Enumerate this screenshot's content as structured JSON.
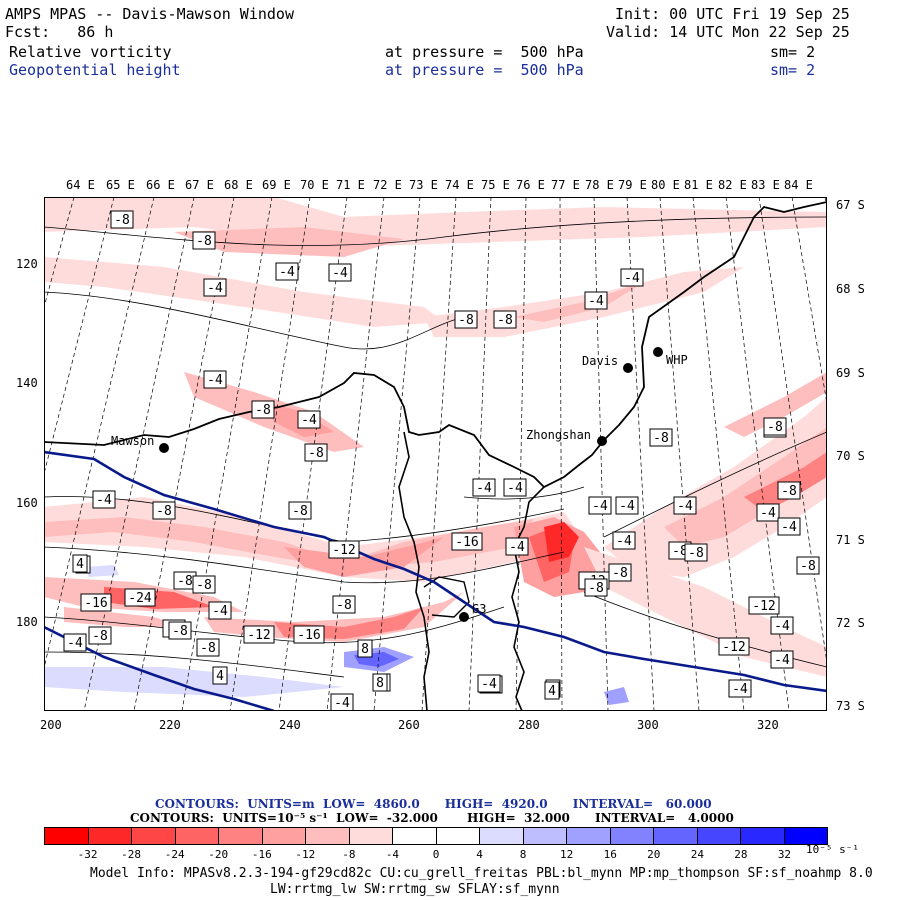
{
  "header": {
    "title": "AMPS MPAS -- Davis-Mawson Window",
    "fcst": "Fcst:   86 h",
    "init": "Init: 00 UTC Fri 19 Sep 25",
    "valid": "Valid: 14 UTC Mon 22 Sep 25",
    "field1": "Relative vorticity",
    "field1_level": "at pressure =  500 hPa",
    "field1_sm": "sm= 2",
    "field2": "Geopotential height",
    "field2_level": "at pressure =  500 hPa",
    "field2_sm": "sm= 2"
  },
  "axes": {
    "top": [
      "64 E",
      "65 E",
      "66 E",
      "67 E",
      "68 E",
      "69 E",
      "70 E",
      "71 E",
      "72 E",
      "73 E",
      "74 E",
      "75 E",
      "76 E",
      "77 E",
      "78 E",
      "79 E",
      "80 E",
      "81 E",
      "82 E",
      "83 E",
      "84 E"
    ],
    "right": [
      "67 S",
      "68 S",
      "69 S",
      "70 S",
      "71 S",
      "72 S",
      "73 S"
    ],
    "left": [
      "120",
      "140",
      "160",
      "180"
    ],
    "bottom": [
      "200",
      "220",
      "240",
      "260",
      "280",
      "300",
      "320"
    ]
  },
  "stations": [
    {
      "name": "Mawson"
    },
    {
      "name": "Davis"
    },
    {
      "name": "WHP"
    },
    {
      "name": "Zhongshan"
    },
    {
      "name": "G3"
    }
  ],
  "contour_labels": [
    "-8",
    "-8",
    "-4",
    "-4",
    "-4",
    "-8",
    "-8",
    "-4",
    "-4",
    "-8",
    "-4",
    "-4",
    "-8",
    "-4",
    "-8",
    "-8",
    "-4",
    "-4",
    "-4",
    "-8",
    "-4",
    "-4",
    "-12",
    "-4",
    "-8",
    "-4",
    "-8",
    "-16",
    "-8",
    "-4",
    "4",
    "-12",
    "-16",
    "-24",
    "-8",
    "-8",
    "-4",
    "-8",
    "-4",
    "-12",
    "-16",
    "8",
    "-8",
    "-4",
    "-4",
    "-8",
    "-4",
    "-8",
    "4",
    "-4",
    "-8",
    "4",
    "-4",
    "-12",
    "-8",
    "-8",
    "-12",
    "-4",
    "-8",
    "-4",
    "-4",
    "4",
    "4",
    "8",
    "-4",
    "4"
  ],
  "captions": {
    "height": "CONTOURS:  UNITS=m  LOW=  4860.0      HIGH=  4920.0      INTERVAL=   60.000",
    "vort": "CONTOURS:  UNITS=10⁻⁵ s⁻¹  LOW=  -32.000       HIGH=  32.000      INTERVAL=   4.0000"
  },
  "colorbar": {
    "colors": [
      "#ff0000",
      "#ff2828",
      "#ff4646",
      "#ff6464",
      "#ff8282",
      "#ffa0a0",
      "#ffbebe",
      "#ffdcdc",
      "#ffffff",
      "#ffffff",
      "#dcdcff",
      "#bebeff",
      "#a0a0ff",
      "#8282ff",
      "#6464ff",
      "#4646ff",
      "#2828ff",
      "#0000ff"
    ],
    "ticks": [
      "-32",
      "-28",
      "-24",
      "-20",
      "-16",
      "-12",
      "-8",
      "-4",
      "0",
      "4",
      "8",
      "12",
      "16",
      "20",
      "24",
      "28",
      "32"
    ],
    "unit": "10⁻⁵ s⁻¹"
  },
  "footer": {
    "line1": "Model Info: MPASv8.2.3-194-gf29cd82c CU:cu_grell_freitas PBL:bl_mynn MP:mp_thompson SF:sf_noahmp 8.0",
    "line2": "LW:rrtmg_lw SW:rrtmg_sw SFLAY:sf_mynn"
  }
}
